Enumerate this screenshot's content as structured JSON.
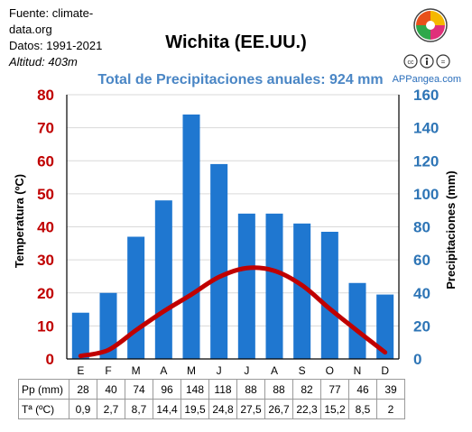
{
  "source": {
    "line1": "Fuente: climate-",
    "line2": "data.org",
    "line3": "Datos: 1991-2021",
    "line4": "Altitud: 403m"
  },
  "brand": "APPangea.com",
  "colors": {
    "temp_axis": "#c00000",
    "precip_axis": "#2e75b6",
    "bars": "#1f77d0",
    "line": "#c00000",
    "subtitle": "#4a86c5"
  },
  "chart_data": {
    "type": "bar",
    "title": "Wichita (EE.UU.)",
    "subtitle": "Total de Precipitaciones anuales: 924 mm",
    "categories": [
      "E",
      "F",
      "M",
      "A",
      "M",
      "J",
      "J",
      "A",
      "S",
      "O",
      "N",
      "D"
    ],
    "series": [
      {
        "name": "Pp (mm)",
        "type": "bar",
        "axis": "right",
        "values": [
          28,
          40,
          74,
          96,
          148,
          118,
          88,
          88,
          82,
          77,
          46,
          39
        ]
      },
      {
        "name": "Tª (ºC)",
        "type": "line",
        "axis": "left",
        "values": [
          0.9,
          2.7,
          8.7,
          14.4,
          19.5,
          24.8,
          27.5,
          26.7,
          22.3,
          15.2,
          8.5,
          2
        ]
      }
    ],
    "value_labels": {
      "precip": [
        "28",
        "40",
        "74",
        "96",
        "148",
        "118",
        "88",
        "88",
        "82",
        "77",
        "46",
        "39"
      ],
      "temp": [
        "0,9",
        "2,7",
        "8,7",
        "14,4",
        "19,5",
        "24,8",
        "27,5",
        "26,7",
        "22,3",
        "15,2",
        "8,5",
        "2"
      ]
    },
    "y_left": {
      "label": "Temperatura (ºC)",
      "lim": [
        0,
        80
      ],
      "ticks": [
        0,
        10,
        20,
        30,
        40,
        50,
        60,
        70,
        80
      ]
    },
    "y_right": {
      "label": "Precipitaciones (mm)",
      "lim": [
        0,
        160
      ],
      "ticks": [
        0,
        20,
        40,
        60,
        80,
        100,
        120,
        140,
        160
      ]
    },
    "grid": "horizontal"
  }
}
